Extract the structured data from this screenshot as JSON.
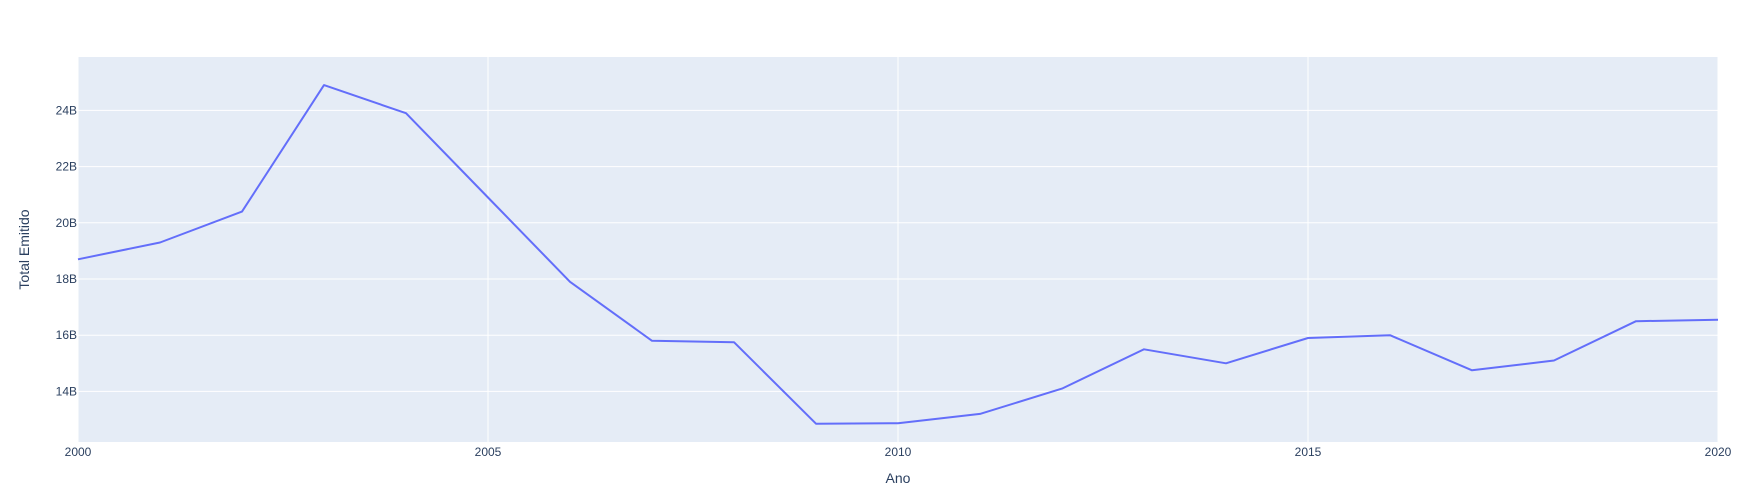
{
  "chart_data": {
    "type": "line",
    "title": "",
    "xlabel": "Ano",
    "ylabel": "Total Emitido",
    "xlim": [
      2000,
      2020
    ],
    "ylim": [
      12.2,
      25.9
    ],
    "x_ticks": [
      2000,
      2005,
      2010,
      2015,
      2020
    ],
    "x_tick_labels": [
      "2000",
      "2005",
      "2010",
      "2015",
      "2020"
    ],
    "y_ticks": [
      14,
      16,
      18,
      20,
      22,
      24
    ],
    "y_tick_labels": [
      "14B",
      "16B",
      "18B",
      "20B",
      "22B",
      "24B"
    ],
    "y_unit": "billions",
    "grid": true,
    "legend": "none",
    "colors": {
      "line": "#636efa",
      "plot_bg": "#e5ecf6",
      "grid": "#ffffff",
      "text": "#2a3f5f"
    },
    "series": [
      {
        "x": [
          2000,
          2001,
          2002,
          2003,
          2004,
          2005,
          2006,
          2007,
          2008,
          2009,
          2010,
          2011,
          2012,
          2013,
          2014,
          2015,
          2016,
          2017,
          2018,
          2019,
          2020
        ],
        "values": [
          18.7,
          19.3,
          20.4,
          24.9,
          23.9,
          20.9,
          17.9,
          15.8,
          15.75,
          12.85,
          12.87,
          13.2,
          14.1,
          15.5,
          15.0,
          15.9,
          16.0,
          14.75,
          15.1,
          16.5,
          16.55
        ]
      }
    ]
  }
}
